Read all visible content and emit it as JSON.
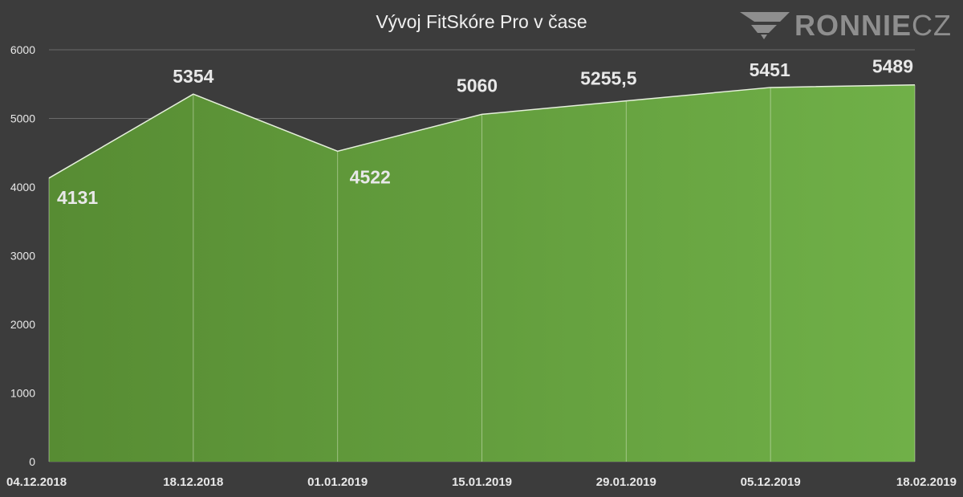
{
  "logo": {
    "text_bold": "RONNIE",
    "text_thin": "CZ"
  },
  "colors": {
    "background": "#3c3c3c",
    "area_left": "#578c33",
    "area_right": "#70b048",
    "line": "#e6f0dc",
    "grid": "#6a6a6a",
    "axis_text": "#e8e8e8",
    "label_text": "#e8e8e8"
  },
  "chart_data": {
    "type": "area",
    "title": "Vývoj FitSkóre Pro v čase",
    "xlabel": "",
    "ylabel": "",
    "ylim": [
      0,
      6000
    ],
    "yticks": [
      0,
      1000,
      2000,
      3000,
      4000,
      5000,
      6000
    ],
    "grid": true,
    "categories": [
      "04.12.2018",
      "18.12.2018",
      "01.01.2019",
      "15.01.2019",
      "29.01.2019",
      "05.12.2019",
      "18.02.2019"
    ],
    "series": [
      {
        "values": [
          4131,
          5354,
          4522,
          5060,
          5255.5,
          5451,
          5489
        ],
        "data_labels": [
          "4131",
          "5354",
          "4522",
          "5060",
          "5255,5",
          "5451",
          "5489"
        ]
      }
    ]
  }
}
